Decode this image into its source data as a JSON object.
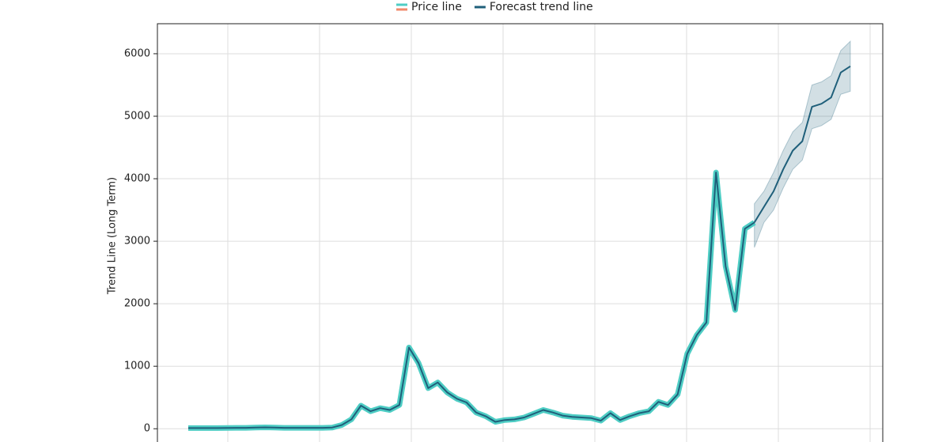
{
  "chart_data": {
    "type": "line",
    "ylabel": "Trend Line (Long Term)",
    "ylim": [
      -250,
      6480
    ],
    "yticks": [
      0,
      1000,
      2000,
      3000,
      4000,
      5000,
      6000
    ],
    "grid": true,
    "legend": "top",
    "series": [
      {
        "name": "Price line",
        "color": "#4ecdc4",
        "values": [
          10,
          10,
          10,
          10,
          12,
          15,
          15,
          20,
          22,
          18,
          15,
          15,
          15,
          15,
          15,
          20,
          60,
          150,
          370,
          280,
          330,
          300,
          380,
          1300,
          1050,
          650,
          740,
          580,
          480,
          420,
          260,
          200,
          110,
          140,
          150,
          180,
          240,
          300,
          260,
          210,
          190,
          180,
          170,
          130,
          250,
          140,
          200,
          250,
          280,
          430,
          380,
          550,
          1200,
          1500,
          1700,
          4100,
          2600,
          1900,
          3200,
          3300,
          null,
          null,
          null,
          null,
          null,
          null,
          null,
          null,
          null,
          null
        ]
      },
      {
        "name": "Forecast trend line",
        "color": "#1f5f7a",
        "values": [
          null,
          null,
          null,
          null,
          null,
          null,
          null,
          null,
          null,
          null,
          null,
          null,
          null,
          null,
          null,
          null,
          null,
          null,
          null,
          null,
          null,
          null,
          null,
          null,
          null,
          null,
          null,
          null,
          null,
          null,
          null,
          null,
          null,
          null,
          null,
          null,
          null,
          null,
          null,
          null,
          null,
          null,
          null,
          null,
          null,
          null,
          null,
          null,
          null,
          null,
          null,
          null,
          null,
          null,
          null,
          null,
          null,
          null,
          null,
          3300,
          3550,
          3800,
          4150,
          4450,
          4600,
          5150,
          5200,
          5300,
          5700,
          5800
        ],
        "lower": [
          null,
          null,
          null,
          null,
          null,
          null,
          null,
          null,
          null,
          null,
          null,
          null,
          null,
          null,
          null,
          null,
          null,
          null,
          null,
          null,
          null,
          null,
          null,
          null,
          null,
          null,
          null,
          null,
          null,
          null,
          null,
          null,
          null,
          null,
          null,
          null,
          null,
          null,
          null,
          null,
          null,
          null,
          null,
          null,
          null,
          null,
          null,
          null,
          null,
          null,
          null,
          null,
          null,
          null,
          null,
          null,
          null,
          null,
          null,
          2900,
          3300,
          3500,
          3850,
          4150,
          4300,
          4800,
          4850,
          4950,
          5350,
          5400
        ],
        "upper": [
          null,
          null,
          null,
          null,
          null,
          null,
          null,
          null,
          null,
          null,
          null,
          null,
          null,
          null,
          null,
          null,
          null,
          null,
          null,
          null,
          null,
          null,
          null,
          null,
          null,
          null,
          null,
          null,
          null,
          null,
          null,
          null,
          null,
          null,
          null,
          null,
          null,
          null,
          null,
          null,
          null,
          null,
          null,
          null,
          null,
          null,
          null,
          null,
          null,
          null,
          null,
          null,
          null,
          null,
          null,
          null,
          null,
          null,
          null,
          3600,
          3800,
          4100,
          4450,
          4750,
          4900,
          5500,
          5550,
          5650,
          6050,
          6200
        ]
      }
    ]
  }
}
